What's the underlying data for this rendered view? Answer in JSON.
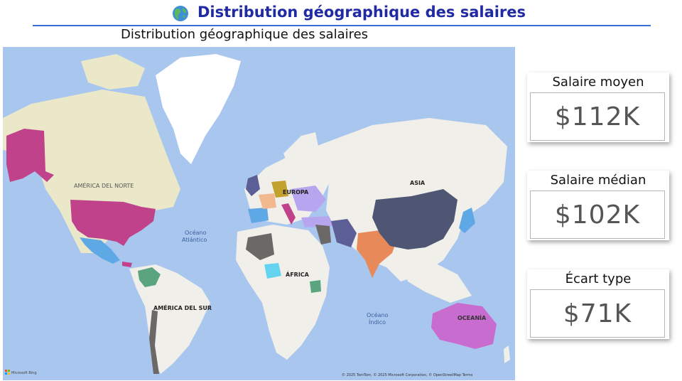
{
  "header": {
    "globe_icon": "globe-americas-icon",
    "title": "Distribution géographique des salaires"
  },
  "map": {
    "title": "Distribution géographique des salaires",
    "labels": {
      "north_america": "AMÉRICA DEL NORTE",
      "south_america": "AMÉRICA DEL SUR",
      "europe": "EUROPA",
      "asia": "ASIA",
      "africa": "ÁFRICA",
      "oceania": "OCEANÍA",
      "atlantic_1": "Océano",
      "atlantic_2": "Atlántico",
      "indian_1": "Océano",
      "indian_2": "Índico"
    },
    "brand": "Microsoft Bing",
    "attribution": "© 2025 TomTom, © 2025 Microsoft Corporation, © OpenStreetMap  Terms",
    "colors": {
      "ocean": "#a9c6ee",
      "land": "#f1efe9",
      "usa": "#c0428a",
      "china": "#4f5674",
      "india": "#e8895a",
      "australia": "#c96ccf",
      "mexico": "#5fa8e6",
      "brazil_colombia": "#5aa57f",
      "algeria": "#6d6868",
      "nigeria": "#63d3ef",
      "russia_east_europe": "#b7a6ef",
      "germany": "#c2a12e",
      "iran": "#5c5f96",
      "greenland": "#ffffff"
    }
  },
  "kpis": [
    {
      "label": "Salaire moyen",
      "value": "$112K"
    },
    {
      "label": "Salaire médian",
      "value": "$102K"
    },
    {
      "label": "Écart type",
      "value": "$71K"
    }
  ]
}
